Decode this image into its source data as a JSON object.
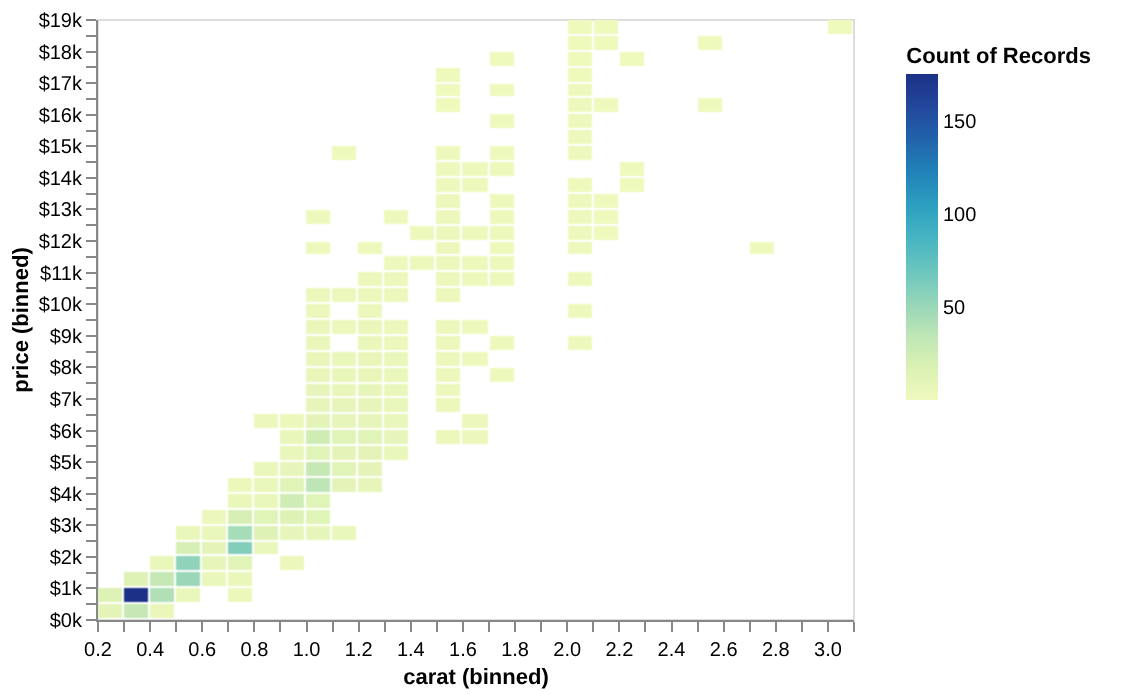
{
  "chart_data": {
    "type": "heatmap",
    "xlabel": "carat (binned)",
    "ylabel": "price (binned)",
    "clabel": "Count of Records",
    "xlim": [
      0.2,
      3.1
    ],
    "ylim": [
      0,
      19000
    ],
    "xticks": [
      {
        "value": 0.2,
        "label": "0.2"
      },
      {
        "value": 0.3,
        "label": null
      },
      {
        "value": 0.4,
        "label": "0.4"
      },
      {
        "value": 0.5,
        "label": null
      },
      {
        "value": 0.6,
        "label": "0.6"
      },
      {
        "value": 0.7,
        "label": null
      },
      {
        "value": 0.8,
        "label": "0.8"
      },
      {
        "value": 0.9,
        "label": null
      },
      {
        "value": 1.0,
        "label": "1.0"
      },
      {
        "value": 1.1,
        "label": null
      },
      {
        "value": 1.2,
        "label": "1.2"
      },
      {
        "value": 1.3,
        "label": null
      },
      {
        "value": 1.4,
        "label": "1.4"
      },
      {
        "value": 1.5,
        "label": null
      },
      {
        "value": 1.6,
        "label": "1.6"
      },
      {
        "value": 1.7,
        "label": null
      },
      {
        "value": 1.8,
        "label": "1.8"
      },
      {
        "value": 1.9,
        "label": null
      },
      {
        "value": 2.0,
        "label": "2.0"
      },
      {
        "value": 2.1,
        "label": null
      },
      {
        "value": 2.2,
        "label": "2.2"
      },
      {
        "value": 2.3,
        "label": null
      },
      {
        "value": 2.4,
        "label": "2.4"
      },
      {
        "value": 2.5,
        "label": null
      },
      {
        "value": 2.6,
        "label": "2.6"
      },
      {
        "value": 2.7,
        "label": null
      },
      {
        "value": 2.8,
        "label": "2.8"
      },
      {
        "value": 2.9,
        "label": null
      },
      {
        "value": 3.0,
        "label": "3.0"
      },
      {
        "value": 3.1,
        "label": null
      }
    ],
    "yticks": [
      {
        "value": 0,
        "label": "$0k"
      },
      {
        "value": 500,
        "label": null
      },
      {
        "value": 1000,
        "label": "$1k"
      },
      {
        "value": 1500,
        "label": null
      },
      {
        "value": 2000,
        "label": "$2k"
      },
      {
        "value": 2500,
        "label": null
      },
      {
        "value": 3000,
        "label": "$3k"
      },
      {
        "value": 3500,
        "label": null
      },
      {
        "value": 4000,
        "label": "$4k"
      },
      {
        "value": 4500,
        "label": null
      },
      {
        "value": 5000,
        "label": "$5k"
      },
      {
        "value": 5500,
        "label": null
      },
      {
        "value": 6000,
        "label": "$6k"
      },
      {
        "value": 6500,
        "label": null
      },
      {
        "value": 7000,
        "label": "$7k"
      },
      {
        "value": 7500,
        "label": null
      },
      {
        "value": 8000,
        "label": "$8k"
      },
      {
        "value": 8500,
        "label": null
      },
      {
        "value": 9000,
        "label": "$9k"
      },
      {
        "value": 9500,
        "label": null
      },
      {
        "value": 10000,
        "label": "$10k"
      },
      {
        "value": 10500,
        "label": null
      },
      {
        "value": 11000,
        "label": "$11k"
      },
      {
        "value": 11500,
        "label": null
      },
      {
        "value": 12000,
        "label": "$12k"
      },
      {
        "value": 12500,
        "label": null
      },
      {
        "value": 13000,
        "label": "$13k"
      },
      {
        "value": 13500,
        "label": null
      },
      {
        "value": 14000,
        "label": "$14k"
      },
      {
        "value": 14500,
        "label": null
      },
      {
        "value": 15000,
        "label": "$15k"
      },
      {
        "value": 15500,
        "label": null
      },
      {
        "value": 16000,
        "label": "$16k"
      },
      {
        "value": 16500,
        "label": null
      },
      {
        "value": 17000,
        "label": "$17k"
      },
      {
        "value": 17500,
        "label": null
      },
      {
        "value": 18000,
        "label": "$18k"
      },
      {
        "value": 18500,
        "label": null
      },
      {
        "value": 19000,
        "label": "$19k"
      }
    ],
    "clim": [
      0,
      175
    ],
    "cticks": [
      50,
      100,
      150
    ],
    "grid": false,
    "cells": [
      [
        null,
        null,
        null,
        null,
        null,
        null,
        null,
        null,
        null,
        null,
        null,
        null,
        null,
        null,
        null,
        null,
        null,
        null,
        1,
        1,
        null,
        null,
        null,
        null,
        null,
        null,
        null,
        null,
        1
      ],
      [
        null,
        null,
        null,
        null,
        null,
        null,
        null,
        null,
        null,
        null,
        null,
        null,
        null,
        null,
        null,
        null,
        null,
        null,
        1,
        1,
        null,
        null,
        null,
        1,
        null,
        null,
        null,
        null,
        null
      ],
      [
        null,
        null,
        null,
        null,
        null,
        null,
        null,
        null,
        null,
        null,
        null,
        null,
        null,
        null,
        null,
        1,
        null,
        null,
        1,
        null,
        1,
        null,
        null,
        null,
        null,
        null,
        null,
        null,
        null
      ],
      [
        null,
        null,
        null,
        null,
        null,
        null,
        null,
        null,
        null,
        null,
        null,
        null,
        null,
        1,
        null,
        null,
        null,
        null,
        1,
        null,
        null,
        null,
        null,
        null,
        null,
        null,
        null,
        null,
        null
      ],
      [
        null,
        null,
        null,
        null,
        null,
        null,
        null,
        null,
        null,
        null,
        null,
        null,
        null,
        1,
        null,
        1,
        null,
        null,
        2,
        null,
        null,
        null,
        null,
        null,
        null,
        null,
        null,
        null,
        null
      ],
      [
        null,
        null,
        null,
        null,
        null,
        null,
        null,
        null,
        null,
        null,
        null,
        null,
        null,
        1,
        null,
        null,
        null,
        null,
        2,
        1,
        null,
        null,
        null,
        1,
        null,
        null,
        null,
        null,
        null
      ],
      [
        null,
        null,
        null,
        null,
        null,
        null,
        null,
        null,
        null,
        null,
        null,
        null,
        null,
        null,
        null,
        1,
        null,
        null,
        2,
        null,
        null,
        null,
        null,
        null,
        null,
        null,
        null,
        null,
        null
      ],
      [
        null,
        null,
        null,
        null,
        null,
        null,
        null,
        null,
        null,
        null,
        null,
        null,
        null,
        null,
        null,
        null,
        null,
        null,
        2,
        null,
        null,
        null,
        null,
        null,
        null,
        null,
        null,
        null,
        null
      ],
      [
        null,
        null,
        null,
        null,
        null,
        null,
        null,
        null,
        null,
        1,
        null,
        null,
        null,
        2,
        null,
        1,
        null,
        null,
        2,
        null,
        null,
        null,
        null,
        null,
        null,
        null,
        null,
        null,
        null
      ],
      [
        null,
        null,
        null,
        null,
        null,
        null,
        null,
        null,
        null,
        null,
        null,
        null,
        null,
        2,
        2,
        2,
        null,
        null,
        null,
        null,
        1,
        null,
        null,
        null,
        null,
        null,
        null,
        null,
        null
      ],
      [
        null,
        null,
        null,
        null,
        null,
        null,
        null,
        null,
        null,
        null,
        null,
        null,
        null,
        2,
        2,
        null,
        null,
        null,
        1,
        null,
        1,
        null,
        null,
        null,
        null,
        null,
        null,
        null,
        null
      ],
      [
        null,
        null,
        null,
        null,
        null,
        null,
        null,
        null,
        null,
        null,
        null,
        null,
        null,
        3,
        null,
        2,
        null,
        null,
        2,
        1,
        null,
        null,
        null,
        null,
        null,
        null,
        null,
        null,
        null
      ],
      [
        null,
        null,
        null,
        null,
        null,
        null,
        null,
        null,
        2,
        null,
        null,
        2,
        null,
        3,
        null,
        2,
        null,
        null,
        2,
        1,
        null,
        null,
        null,
        null,
        null,
        null,
        null,
        null,
        null
      ],
      [
        null,
        null,
        null,
        null,
        null,
        null,
        null,
        null,
        null,
        null,
        null,
        null,
        2,
        3,
        2,
        2,
        null,
        null,
        2,
        1,
        null,
        null,
        null,
        null,
        null,
        null,
        null,
        null,
        null
      ],
      [
        null,
        null,
        null,
        null,
        null,
        null,
        null,
        null,
        2,
        null,
        2,
        null,
        null,
        3,
        null,
        2,
        null,
        null,
        2,
        null,
        null,
        null,
        null,
        null,
        null,
        1,
        null,
        null,
        null
      ],
      [
        null,
        null,
        null,
        null,
        null,
        null,
        null,
        null,
        null,
        null,
        null,
        2,
        2,
        3,
        2,
        2,
        null,
        null,
        null,
        null,
        null,
        null,
        null,
        null,
        null,
        null,
        null,
        null,
        null
      ],
      [
        null,
        null,
        null,
        null,
        null,
        null,
        null,
        null,
        null,
        null,
        3,
        3,
        null,
        3,
        2,
        2,
        null,
        null,
        2,
        null,
        null,
        null,
        null,
        null,
        null,
        null,
        null,
        null,
        null
      ],
      [
        null,
        null,
        null,
        null,
        null,
        null,
        null,
        null,
        3,
        3,
        3,
        3,
        null,
        3,
        null,
        null,
        null,
        null,
        null,
        null,
        null,
        null,
        null,
        null,
        null,
        null,
        null,
        null,
        null
      ],
      [
        null,
        null,
        null,
        null,
        null,
        null,
        null,
        null,
        3,
        null,
        3,
        null,
        null,
        null,
        null,
        null,
        null,
        null,
        2,
        null,
        null,
        null,
        null,
        null,
        null,
        null,
        null,
        null,
        null
      ],
      [
        null,
        null,
        null,
        null,
        null,
        null,
        null,
        null,
        5,
        3,
        5,
        3,
        null,
        3,
        2,
        null,
        null,
        null,
        null,
        null,
        null,
        null,
        null,
        null,
        null,
        null,
        null,
        null,
        null
      ],
      [
        null,
        null,
        null,
        null,
        null,
        null,
        null,
        null,
        5,
        null,
        5,
        3,
        null,
        3,
        null,
        2,
        null,
        null,
        2,
        null,
        null,
        null,
        null,
        null,
        null,
        null,
        null,
        null,
        null
      ],
      [
        null,
        null,
        null,
        null,
        null,
        null,
        null,
        null,
        6,
        5,
        6,
        5,
        null,
        3,
        2,
        null,
        null,
        null,
        null,
        null,
        null,
        null,
        null,
        null,
        null,
        null,
        null,
        null,
        null
      ],
      [
        null,
        null,
        null,
        null,
        null,
        null,
        null,
        null,
        6,
        6,
        6,
        5,
        null,
        3,
        null,
        2,
        null,
        null,
        null,
        null,
        null,
        null,
        null,
        null,
        null,
        null,
        null,
        null,
        null
      ],
      [
        null,
        null,
        null,
        null,
        null,
        null,
        null,
        null,
        8,
        6,
        8,
        5,
        null,
        3,
        null,
        null,
        null,
        null,
        null,
        null,
        null,
        null,
        null,
        null,
        null,
        null,
        null,
        null,
        null
      ],
      [
        null,
        null,
        null,
        null,
        null,
        null,
        null,
        null,
        8,
        8,
        8,
        5,
        null,
        3,
        null,
        null,
        null,
        null,
        null,
        null,
        null,
        null,
        null,
        null,
        null,
        null,
        null,
        null,
        null
      ],
      [
        null,
        null,
        null,
        null,
        null,
        null,
        3,
        3,
        10,
        8,
        8,
        5,
        null,
        null,
        3,
        null,
        null,
        null,
        null,
        null,
        null,
        null,
        null,
        null,
        null,
        null,
        null,
        null,
        null
      ],
      [
        null,
        null,
        null,
        null,
        null,
        null,
        null,
        5,
        25,
        12,
        12,
        8,
        null,
        3,
        3,
        null,
        null,
        null,
        null,
        null,
        null,
        null,
        null,
        null,
        null,
        null,
        null,
        null,
        null
      ],
      [
        null,
        null,
        null,
        null,
        null,
        null,
        null,
        5,
        12,
        10,
        10,
        5,
        null,
        null,
        null,
        null,
        null,
        null,
        null,
        null,
        null,
        null,
        null,
        null,
        null,
        null,
        null,
        null,
        null
      ],
      [
        null,
        null,
        null,
        null,
        null,
        null,
        5,
        8,
        30,
        12,
        10,
        null,
        null,
        null,
        null,
        null,
        null,
        null,
        null,
        null,
        null,
        null,
        null,
        null,
        null,
        null,
        null,
        null,
        null
      ],
      [
        null,
        null,
        null,
        null,
        null,
        3,
        5,
        12,
        35,
        10,
        8,
        null,
        null,
        null,
        null,
        null,
        null,
        null,
        null,
        null,
        null,
        null,
        null,
        null,
        null,
        null,
        null,
        null,
        null
      ],
      [
        null,
        null,
        null,
        null,
        null,
        5,
        5,
        25,
        12,
        null,
        null,
        null,
        null,
        null,
        null,
        null,
        null,
        null,
        null,
        null,
        null,
        null,
        null,
        null,
        null,
        null,
        null,
        null,
        null
      ],
      [
        null,
        null,
        null,
        null,
        3,
        20,
        12,
        15,
        12,
        null,
        null,
        null,
        null,
        null,
        null,
        null,
        null,
        null,
        null,
        null,
        null,
        null,
        null,
        null,
        null,
        null,
        null,
        null,
        null
      ],
      [
        null,
        null,
        null,
        5,
        5,
        45,
        15,
        8,
        8,
        5,
        null,
        null,
        null,
        null,
        null,
        null,
        null,
        null,
        null,
        null,
        null,
        null,
        null,
        null,
        null,
        null,
        null,
        null,
        null
      ],
      [
        null,
        null,
        null,
        20,
        10,
        60,
        5,
        null,
        null,
        null,
        null,
        null,
        null,
        null,
        null,
        null,
        null,
        null,
        null,
        null,
        null,
        null,
        null,
        null,
        null,
        null,
        null,
        null,
        null
      ],
      [
        null,
        null,
        5,
        55,
        8,
        12,
        null,
        3,
        null,
        null,
        null,
        null,
        null,
        null,
        null,
        null,
        null,
        null,
        null,
        null,
        null,
        null,
        null,
        null,
        null,
        null,
        null,
        null,
        null
      ],
      [
        null,
        15,
        30,
        50,
        5,
        5,
        null,
        null,
        null,
        null,
        null,
        null,
        null,
        null,
        null,
        null,
        null,
        null,
        null,
        null,
        null,
        null,
        null,
        null,
        null,
        null,
        null,
        null,
        null
      ],
      [
        15,
        175,
        40,
        5,
        null,
        3,
        null,
        null,
        null,
        null,
        null,
        null,
        null,
        null,
        null,
        null,
        null,
        null,
        null,
        null,
        null,
        null,
        null,
        null,
        null,
        null,
        null,
        null,
        null
      ],
      [
        10,
        30,
        5,
        null,
        null,
        null,
        null,
        null,
        null,
        null,
        null,
        null,
        null,
        null,
        null,
        null,
        null,
        null,
        null,
        null,
        null,
        null,
        null,
        null,
        null,
        null,
        null,
        null,
        null
      ]
    ]
  }
}
